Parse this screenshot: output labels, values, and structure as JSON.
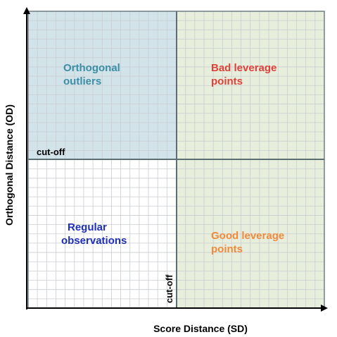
{
  "diagram": {
    "x_axis_label": "Score Distance (SD)",
    "y_axis_label": "Orthogonal Distance (OD)",
    "cutoff_horizontal_label": "cut-off",
    "cutoff_vertical_label": "cut-off",
    "regions": {
      "orthogonal_outliers": {
        "line1": "Orthogonal",
        "line2": "outliers",
        "text_color": "#3b8ea5",
        "fill_color": "#d2e3ea"
      },
      "bad_leverage_points": {
        "line1": "Bad leverage",
        "line2": "points",
        "text_color": "#e0403a",
        "fill_color": "#e7eedb"
      },
      "regular_observations": {
        "line1": "Regular",
        "line2": "observations",
        "text_color": "#1f2fb5",
        "fill_color": "#ffffff"
      },
      "good_leverage_points": {
        "line1": "Good leverage",
        "line2": "points",
        "text_color": "#f08a3c",
        "fill_color": "#e7eedb"
      }
    },
    "colors": {
      "grid": "#c9cdd2",
      "cutoff_line": "#5b6f73",
      "axis": "#000000",
      "region_border": "#6e7f82"
    }
  }
}
